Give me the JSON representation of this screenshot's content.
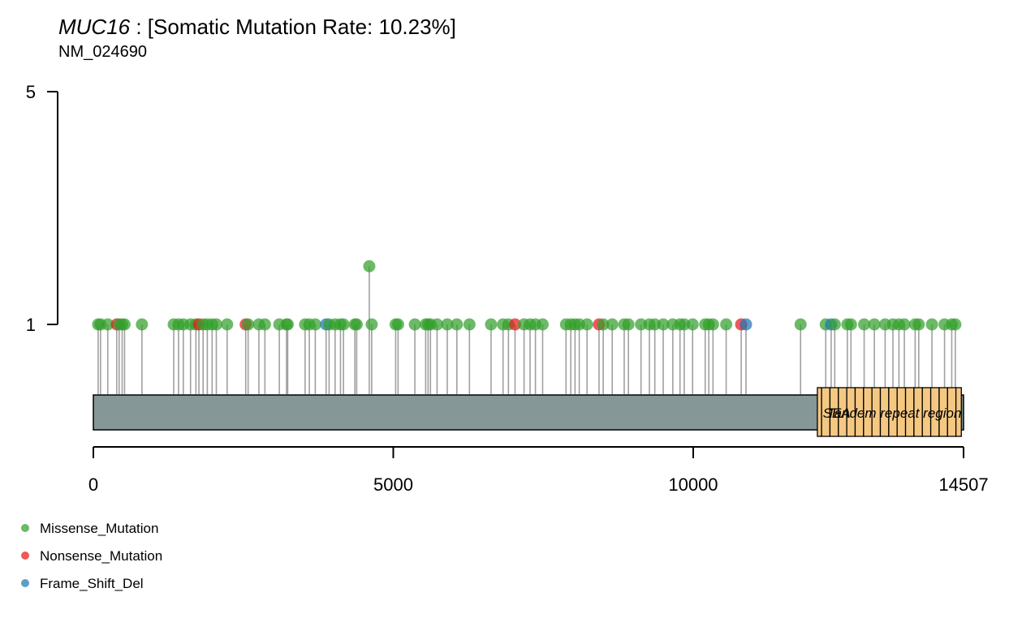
{
  "title": {
    "gene": "MUC16",
    "rate_text": " : [Somatic Mutation Rate: 10.23%]",
    "transcript": "NM_024690"
  },
  "colors": {
    "missense": "#33A02C",
    "nonsense": "#E31A1C",
    "frameshift": "#1F78B4",
    "protein": "#859796",
    "domain": "#F5C882",
    "stem": "#A0A0A0"
  },
  "chart_data": {
    "type": "lollipop",
    "protein_length": 14507,
    "xlim": [
      0,
      14507
    ],
    "ylim": [
      0,
      5
    ],
    "x_ticks": [
      0,
      5000,
      10000,
      14507
    ],
    "y_ticks": [
      1,
      5
    ],
    "domain_label": "SEA",
    "domain_label_2": "Tandem repeat region",
    "domains": [
      {
        "name": "SEA",
        "start": 12070,
        "end": 12140
      },
      {
        "name": "SEA",
        "start": 12140,
        "end": 12280
      },
      {
        "name": "SEA",
        "start": 12280,
        "end": 12420
      },
      {
        "name": "SEA",
        "start": 12420,
        "end": 12560
      },
      {
        "name": "SEA",
        "start": 12560,
        "end": 12700
      },
      {
        "name": "SEA",
        "start": 12700,
        "end": 12840
      },
      {
        "name": "SEA",
        "start": 12840,
        "end": 12980
      },
      {
        "name": "SEA",
        "start": 12980,
        "end": 13120
      },
      {
        "name": "SEA",
        "start": 13120,
        "end": 13260
      },
      {
        "name": "SEA",
        "start": 13260,
        "end": 13400
      },
      {
        "name": "SEA",
        "start": 13400,
        "end": 13540
      },
      {
        "name": "SEA",
        "start": 13540,
        "end": 13680
      },
      {
        "name": "SEA",
        "start": 13680,
        "end": 13820
      },
      {
        "name": "SEA",
        "start": 13820,
        "end": 13960
      },
      {
        "name": "SEA",
        "start": 13960,
        "end": 14100
      },
      {
        "name": "SEA",
        "start": 14100,
        "end": 14240
      },
      {
        "name": "SEA",
        "start": 14240,
        "end": 14380
      },
      {
        "name": "Tandem repeat region",
        "start": 14380,
        "end": 14470
      }
    ],
    "legend": [
      {
        "label": "Missense_Mutation",
        "type": "missense"
      },
      {
        "label": "Nonsense_Mutation",
        "type": "nonsense"
      },
      {
        "label": "Frame_Shift_Del",
        "type": "frameshift"
      }
    ],
    "mutations": [
      {
        "pos": 80,
        "count": 1,
        "type": "missense"
      },
      {
        "pos": 120,
        "count": 1,
        "type": "missense"
      },
      {
        "pos": 240,
        "count": 1,
        "type": "missense"
      },
      {
        "pos": 390,
        "count": 1,
        "type": "nonsense"
      },
      {
        "pos": 430,
        "count": 1,
        "type": "missense"
      },
      {
        "pos": 480,
        "count": 1,
        "type": "missense"
      },
      {
        "pos": 520,
        "count": 1,
        "type": "missense"
      },
      {
        "pos": 810,
        "count": 1,
        "type": "missense"
      },
      {
        "pos": 1340,
        "count": 1,
        "type": "missense"
      },
      {
        "pos": 1420,
        "count": 1,
        "type": "missense"
      },
      {
        "pos": 1500,
        "count": 1,
        "type": "missense"
      },
      {
        "pos": 1620,
        "count": 1,
        "type": "missense"
      },
      {
        "pos": 1710,
        "count": 1,
        "type": "missense"
      },
      {
        "pos": 1760,
        "count": 1,
        "type": "nonsense"
      },
      {
        "pos": 1830,
        "count": 1,
        "type": "missense"
      },
      {
        "pos": 1900,
        "count": 1,
        "type": "missense"
      },
      {
        "pos": 1980,
        "count": 1,
        "type": "missense"
      },
      {
        "pos": 2050,
        "count": 1,
        "type": "missense"
      },
      {
        "pos": 2230,
        "count": 1,
        "type": "missense"
      },
      {
        "pos": 2540,
        "count": 1,
        "type": "nonsense"
      },
      {
        "pos": 2580,
        "count": 1,
        "type": "missense"
      },
      {
        "pos": 2760,
        "count": 1,
        "type": "missense"
      },
      {
        "pos": 2860,
        "count": 1,
        "type": "missense"
      },
      {
        "pos": 3100,
        "count": 1,
        "type": "missense"
      },
      {
        "pos": 3220,
        "count": 1,
        "type": "missense"
      },
      {
        "pos": 3240,
        "count": 1,
        "type": "missense"
      },
      {
        "pos": 3530,
        "count": 1,
        "type": "missense"
      },
      {
        "pos": 3600,
        "count": 1,
        "type": "missense"
      },
      {
        "pos": 3700,
        "count": 1,
        "type": "missense"
      },
      {
        "pos": 3880,
        "count": 1,
        "type": "frameshift"
      },
      {
        "pos": 3930,
        "count": 1,
        "type": "missense"
      },
      {
        "pos": 4030,
        "count": 1,
        "type": "missense"
      },
      {
        "pos": 4120,
        "count": 1,
        "type": "missense"
      },
      {
        "pos": 4170,
        "count": 1,
        "type": "missense"
      },
      {
        "pos": 4360,
        "count": 1,
        "type": "missense"
      },
      {
        "pos": 4390,
        "count": 1,
        "type": "missense"
      },
      {
        "pos": 4600,
        "count": 2,
        "type": "missense"
      },
      {
        "pos": 4640,
        "count": 1,
        "type": "missense"
      },
      {
        "pos": 5040,
        "count": 1,
        "type": "missense"
      },
      {
        "pos": 5080,
        "count": 1,
        "type": "missense"
      },
      {
        "pos": 5360,
        "count": 1,
        "type": "missense"
      },
      {
        "pos": 5540,
        "count": 1,
        "type": "missense"
      },
      {
        "pos": 5580,
        "count": 1,
        "type": "missense"
      },
      {
        "pos": 5620,
        "count": 1,
        "type": "missense"
      },
      {
        "pos": 5730,
        "count": 1,
        "type": "missense"
      },
      {
        "pos": 5900,
        "count": 1,
        "type": "missense"
      },
      {
        "pos": 6060,
        "count": 1,
        "type": "missense"
      },
      {
        "pos": 6270,
        "count": 1,
        "type": "missense"
      },
      {
        "pos": 6630,
        "count": 1,
        "type": "missense"
      },
      {
        "pos": 6830,
        "count": 1,
        "type": "missense"
      },
      {
        "pos": 6920,
        "count": 1,
        "type": "missense"
      },
      {
        "pos": 7030,
        "count": 1,
        "type": "nonsense"
      },
      {
        "pos": 7180,
        "count": 1,
        "type": "missense"
      },
      {
        "pos": 7280,
        "count": 1,
        "type": "missense"
      },
      {
        "pos": 7370,
        "count": 1,
        "type": "missense"
      },
      {
        "pos": 7490,
        "count": 1,
        "type": "missense"
      },
      {
        "pos": 7880,
        "count": 1,
        "type": "missense"
      },
      {
        "pos": 7960,
        "count": 1,
        "type": "missense"
      },
      {
        "pos": 8030,
        "count": 1,
        "type": "missense"
      },
      {
        "pos": 8100,
        "count": 1,
        "type": "missense"
      },
      {
        "pos": 8230,
        "count": 1,
        "type": "missense"
      },
      {
        "pos": 8430,
        "count": 1,
        "type": "nonsense"
      },
      {
        "pos": 8500,
        "count": 1,
        "type": "missense"
      },
      {
        "pos": 8650,
        "count": 1,
        "type": "missense"
      },
      {
        "pos": 8850,
        "count": 1,
        "type": "missense"
      },
      {
        "pos": 8920,
        "count": 1,
        "type": "missense"
      },
      {
        "pos": 9130,
        "count": 1,
        "type": "missense"
      },
      {
        "pos": 9270,
        "count": 1,
        "type": "missense"
      },
      {
        "pos": 9360,
        "count": 1,
        "type": "missense"
      },
      {
        "pos": 9500,
        "count": 1,
        "type": "missense"
      },
      {
        "pos": 9660,
        "count": 1,
        "type": "missense"
      },
      {
        "pos": 9780,
        "count": 1,
        "type": "missense"
      },
      {
        "pos": 9850,
        "count": 1,
        "type": "missense"
      },
      {
        "pos": 9990,
        "count": 1,
        "type": "missense"
      },
      {
        "pos": 10200,
        "count": 1,
        "type": "missense"
      },
      {
        "pos": 10260,
        "count": 1,
        "type": "missense"
      },
      {
        "pos": 10330,
        "count": 1,
        "type": "missense"
      },
      {
        "pos": 10550,
        "count": 1,
        "type": "missense"
      },
      {
        "pos": 10800,
        "count": 1,
        "type": "nonsense"
      },
      {
        "pos": 10880,
        "count": 1,
        "type": "frameshift"
      },
      {
        "pos": 11790,
        "count": 1,
        "type": "missense"
      },
      {
        "pos": 12210,
        "count": 1,
        "type": "missense"
      },
      {
        "pos": 12300,
        "count": 1,
        "type": "frameshift"
      },
      {
        "pos": 12360,
        "count": 1,
        "type": "missense"
      },
      {
        "pos": 12570,
        "count": 1,
        "type": "missense"
      },
      {
        "pos": 12630,
        "count": 1,
        "type": "missense"
      },
      {
        "pos": 12850,
        "count": 1,
        "type": "missense"
      },
      {
        "pos": 13020,
        "count": 1,
        "type": "missense"
      },
      {
        "pos": 13200,
        "count": 1,
        "type": "missense"
      },
      {
        "pos": 13330,
        "count": 1,
        "type": "missense"
      },
      {
        "pos": 13430,
        "count": 1,
        "type": "missense"
      },
      {
        "pos": 13520,
        "count": 1,
        "type": "missense"
      },
      {
        "pos": 13700,
        "count": 1,
        "type": "missense"
      },
      {
        "pos": 13760,
        "count": 1,
        "type": "missense"
      },
      {
        "pos": 13980,
        "count": 1,
        "type": "missense"
      },
      {
        "pos": 14190,
        "count": 1,
        "type": "missense"
      },
      {
        "pos": 14310,
        "count": 1,
        "type": "missense"
      },
      {
        "pos": 14370,
        "count": 1,
        "type": "missense"
      }
    ]
  }
}
